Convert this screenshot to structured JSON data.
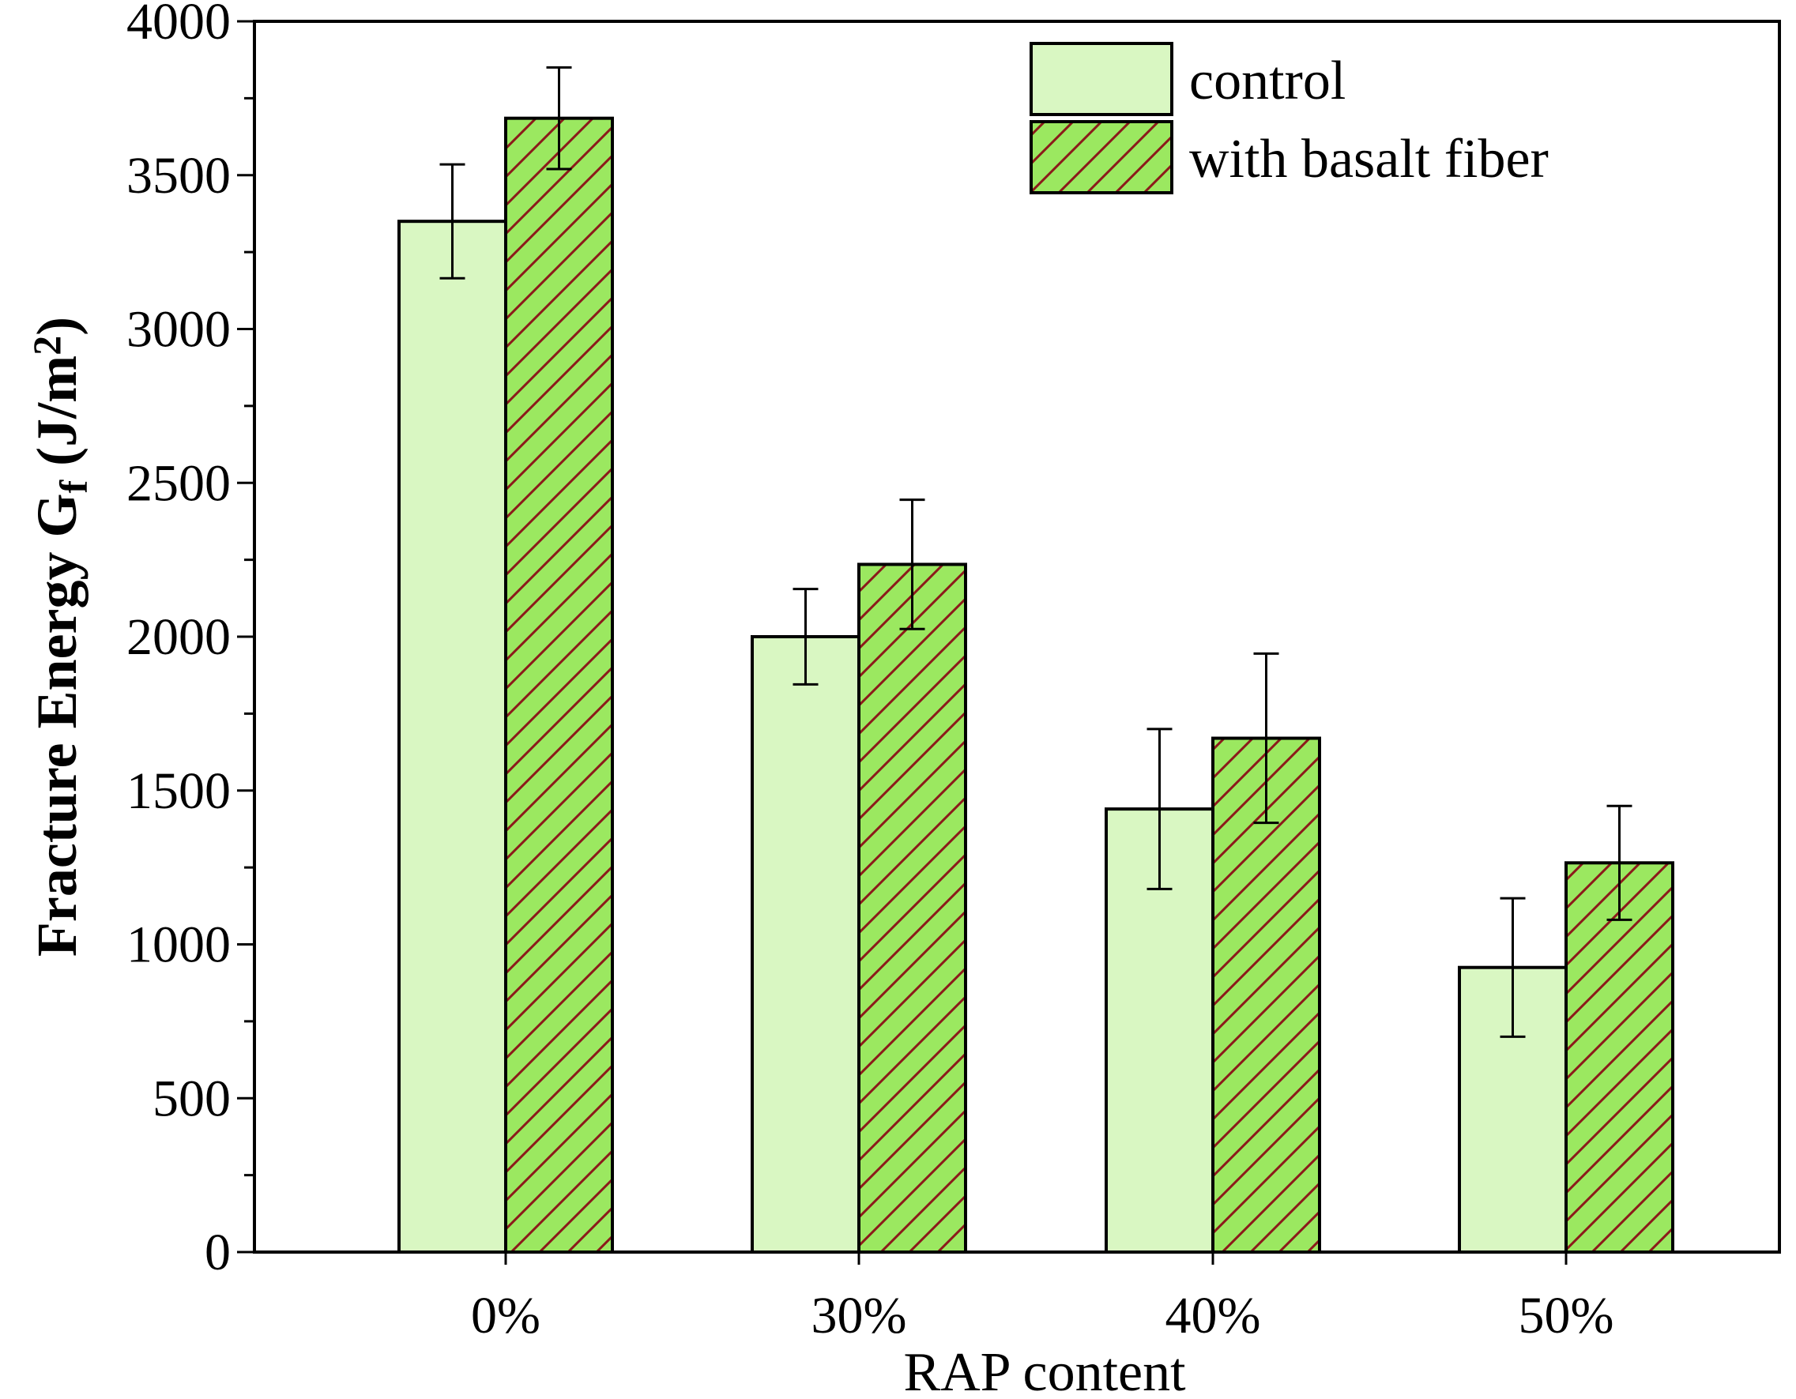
{
  "chart_data": {
    "type": "bar",
    "title": "",
    "xlabel": "RAP content",
    "ylabel": {
      "main": "Fracture Energy G",
      "subscript": "f",
      "unit_prefix": "(J/m",
      "superscript": "2",
      "unit_suffix": ")"
    },
    "categories": [
      "0%",
      "30%",
      "40%",
      "50%"
    ],
    "ylim": [
      0,
      4000
    ],
    "yticks": [
      0,
      500,
      1000,
      1500,
      2000,
      2500,
      3000,
      3500,
      4000
    ],
    "yminor_step": 250,
    "grid": false,
    "legend_position": "top-right",
    "series": [
      {
        "name": "control",
        "values": [
          3350,
          2000,
          1440,
          925
        ],
        "error": [
          185,
          155,
          260,
          225
        ],
        "fill": "#d9f7c2",
        "hatch": false
      },
      {
        "name": "with basalt fiber",
        "values": [
          3685,
          2235,
          1670,
          1265
        ],
        "error": [
          165,
          210,
          275,
          185
        ],
        "fill": "#9be860",
        "hatch": true,
        "hatch_color": "#8b1a1a"
      }
    ]
  }
}
